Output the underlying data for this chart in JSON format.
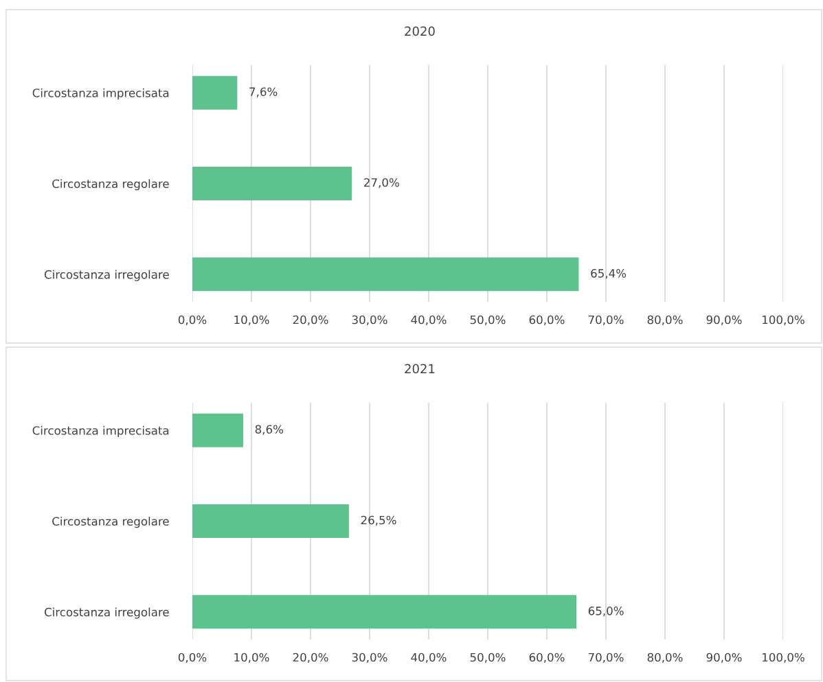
{
  "chart_data": [
    {
      "type": "bar",
      "orientation": "horizontal",
      "title": "2020",
      "categories": [
        "Circostanza imprecisata",
        "Circostanza regolare",
        "Circostanza irregolare"
      ],
      "values": [
        7.6,
        27.0,
        65.4
      ],
      "value_labels": [
        "7,6%",
        "27,0%",
        "65,4%"
      ],
      "color": "#5ec28e",
      "xlim": [
        0,
        100
      ],
      "xticks": [
        {
          "value": 0,
          "label": "0,0%"
        },
        {
          "value": 10,
          "label": "10,0%"
        },
        {
          "value": 20,
          "label": "20,0%"
        },
        {
          "value": 30,
          "label": "30,0%"
        },
        {
          "value": 40,
          "label": "40,0%"
        },
        {
          "value": 50,
          "label": "50,0%"
        },
        {
          "value": 60,
          "label": "60,0%"
        },
        {
          "value": 70,
          "label": "70,0%"
        },
        {
          "value": 80,
          "label": "80,0%"
        },
        {
          "value": 90,
          "label": "90,0%"
        },
        {
          "value": 100,
          "label": "100,0%"
        }
      ],
      "grid": "x",
      "legend": false
    },
    {
      "type": "bar",
      "orientation": "horizontal",
      "title": "2021",
      "categories": [
        "Circostanza imprecisata",
        "Circostanza regolare",
        "Circostanza irregolare"
      ],
      "values": [
        8.6,
        26.5,
        65.0
      ],
      "value_labels": [
        "8,6%",
        "26,5%",
        "65,0%"
      ],
      "color": "#5ec28e",
      "xlim": [
        0,
        100
      ],
      "xticks": [
        {
          "value": 0,
          "label": "0,0%"
        },
        {
          "value": 10,
          "label": "10,0%"
        },
        {
          "value": 20,
          "label": "20,0%"
        },
        {
          "value": 30,
          "label": "30,0%"
        },
        {
          "value": 40,
          "label": "40,0%"
        },
        {
          "value": 50,
          "label": "50,0%"
        },
        {
          "value": 60,
          "label": "60,0%"
        },
        {
          "value": 70,
          "label": "70,0%"
        },
        {
          "value": 80,
          "label": "80,0%"
        },
        {
          "value": 90,
          "label": "90,0%"
        },
        {
          "value": 100,
          "label": "100,0%"
        }
      ],
      "grid": "x",
      "legend": false
    }
  ]
}
